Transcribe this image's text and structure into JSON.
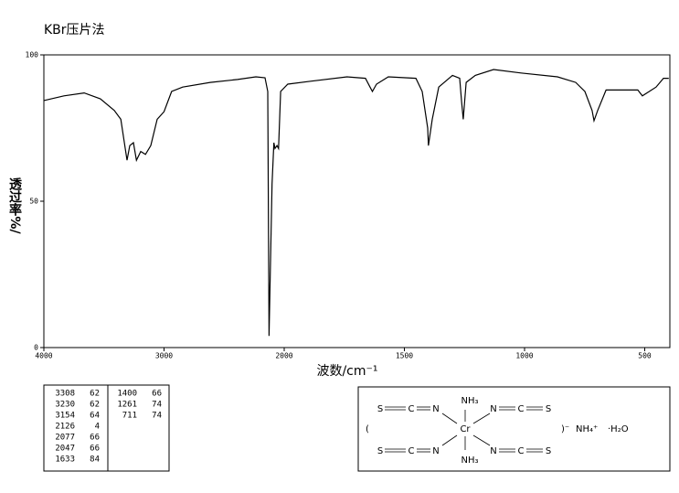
{
  "chart_data": {
    "type": "line",
    "title": "KBr压片法",
    "xlabel": "波数/cm⁻¹",
    "ylabel": "透过率%/",
    "xlim": [
      4000,
      400
    ],
    "xticks": [
      4000,
      3000,
      2000,
      1500,
      1000,
      500
    ],
    "ylim": [
      0,
      100
    ],
    "yticks": [
      0,
      50,
      100
    ],
    "color": "#000000",
    "x": [
      4000,
      3833,
      3665,
      3530,
      3414,
      3360,
      3308,
      3285,
      3255,
      3230,
      3194,
      3154,
      3110,
      3057,
      3000,
      2937,
      2845,
      2616,
      2388,
      2236,
      2160,
      2137,
      2126,
      2101,
      2086,
      2077,
      2060,
      2047,
      2030,
      1985,
      1890,
      1738,
      1662,
      1643,
      1633,
      1616,
      1567,
      1452,
      1426,
      1403,
      1400,
      1384,
      1357,
      1300,
      1270,
      1262,
      1255,
      1243,
      1205,
      1129,
      1015,
      863,
      787,
      749,
      719,
      711,
      696,
      661,
      604,
      529,
      510,
      491,
      453,
      422,
      400
    ],
    "values": [
      84.4,
      86,
      87,
      85,
      81,
      78,
      64,
      69,
      70,
      64,
      67,
      66,
      69,
      78,
      80.6,
      87.5,
      89,
      90.6,
      91.6,
      92.5,
      92.2,
      87.5,
      4,
      56,
      70,
      68,
      69,
      68,
      87.5,
      90,
      91,
      92.5,
      92,
      89,
      87.5,
      90,
      92.5,
      92,
      87.5,
      75,
      69,
      78,
      89,
      93,
      92,
      84,
      78,
      90.6,
      93,
      95,
      93.8,
      92.5,
      90.6,
      87.5,
      81,
      77.5,
      81,
      88,
      88,
      88,
      86,
      87,
      89,
      92,
      92
    ]
  },
  "peak_table": [
    [
      3308,
      62
    ],
    [
      3230,
      62
    ],
    [
      3154,
      64
    ],
    [
      2126,
      4
    ],
    [
      2077,
      66
    ],
    [
      2047,
      66
    ],
    [
      1633,
      84
    ],
    [
      1400,
      66
    ],
    [
      1261,
      74
    ],
    [
      711,
      74
    ]
  ],
  "structure": {
    "open": "(",
    "close": ")⁻",
    "counter": "NH₄⁺",
    "water": "·H₂O",
    "center": "Cr",
    "axial": [
      "NH₃",
      "NH₃"
    ],
    "ligands": [
      [
        "S",
        "C",
        "N"
      ],
      [
        "N",
        "C",
        "S"
      ],
      [
        "S",
        "C",
        "N"
      ],
      [
        "N",
        "C",
        "S"
      ]
    ]
  }
}
